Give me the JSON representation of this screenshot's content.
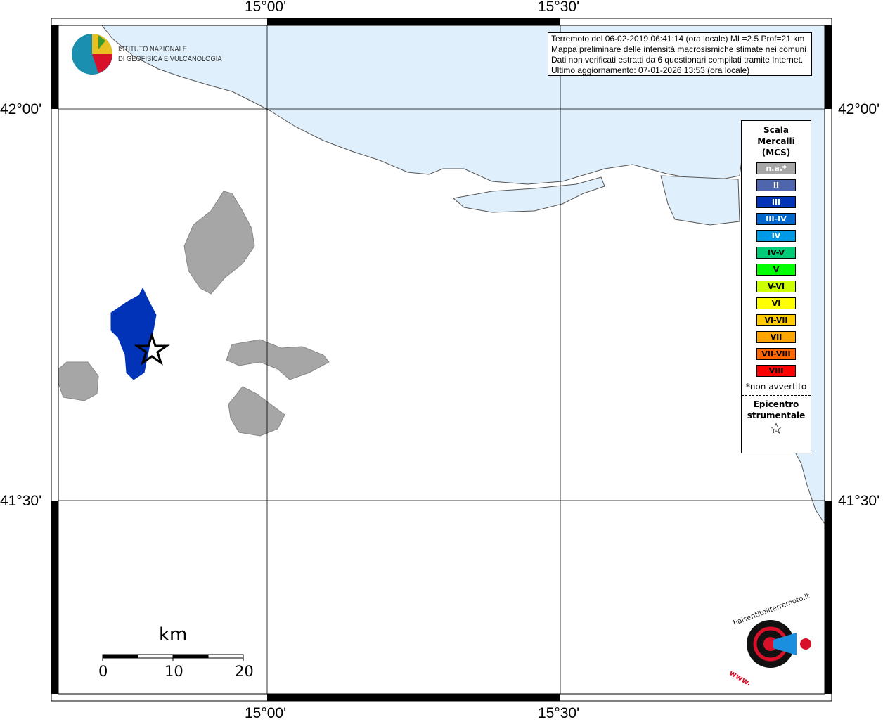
{
  "map": {
    "lon_labels": [
      "15°00'",
      "15°30'"
    ],
    "lat_labels": [
      "42°00'",
      "41°30'"
    ],
    "colors": {
      "sea": "#dff0fc",
      "land": "#ffffff",
      "not_felt": "#a6a6a6",
      "affected": "#0033b8"
    }
  },
  "logo_ingv": {
    "line1": "ISTITUTO NAZIONALE",
    "line2": "DI GEOFISICA E VULCANOLOGIA"
  },
  "info": {
    "line1": "Terremoto del 06-02-2019 06:41:14 (ora locale) ML=2.5 Prof=21 km",
    "line2": "Mappa preliminare delle intensità macrosismiche stimate nei comuni",
    "line3": "Dati non verificati estratti da 6 questionari compilati tramite Internet.",
    "line4": "Ultimo aggiornamento: 07-01-2026 13:53 (ora locale)"
  },
  "legend": {
    "title1": "Scala",
    "title2": "Mercalli",
    "title3": "(MCS)",
    "items": [
      {
        "label": "n.a.*",
        "color": "#a6a6a6",
        "text": "#fff"
      },
      {
        "label": "II",
        "color": "#4f66ad",
        "text": "#fff"
      },
      {
        "label": "III",
        "color": "#0033b8",
        "text": "#fff"
      },
      {
        "label": "III-IV",
        "color": "#0066cc",
        "text": "#fff"
      },
      {
        "label": "IV",
        "color": "#0099e6",
        "text": "#fff"
      },
      {
        "label": "IV-V",
        "color": "#00cc77",
        "text": "#000"
      },
      {
        "label": "V",
        "color": "#00ff00",
        "text": "#000"
      },
      {
        "label": "V-VI",
        "color": "#ccff00",
        "text": "#000"
      },
      {
        "label": "VI",
        "color": "#ffff00",
        "text": "#000"
      },
      {
        "label": "VI-VII",
        "color": "#ffcc00",
        "text": "#000"
      },
      {
        "label": "VII",
        "color": "#ffa500",
        "text": "#000"
      },
      {
        "label": "VII-VIII",
        "color": "#ff6600",
        "text": "#000"
      },
      {
        "label": "VIII",
        "color": "#ff0000",
        "text": "#000"
      }
    ],
    "note": "*non avvertito",
    "epi1": "Epicentro",
    "epi2": "strumentale",
    "star": "☆"
  },
  "scale": {
    "unit": "km",
    "ticks": [
      "0",
      "10",
      "20"
    ]
  },
  "logo_hsit": {
    "text": "haisentitoilterremoto.it",
    "www": "www."
  }
}
